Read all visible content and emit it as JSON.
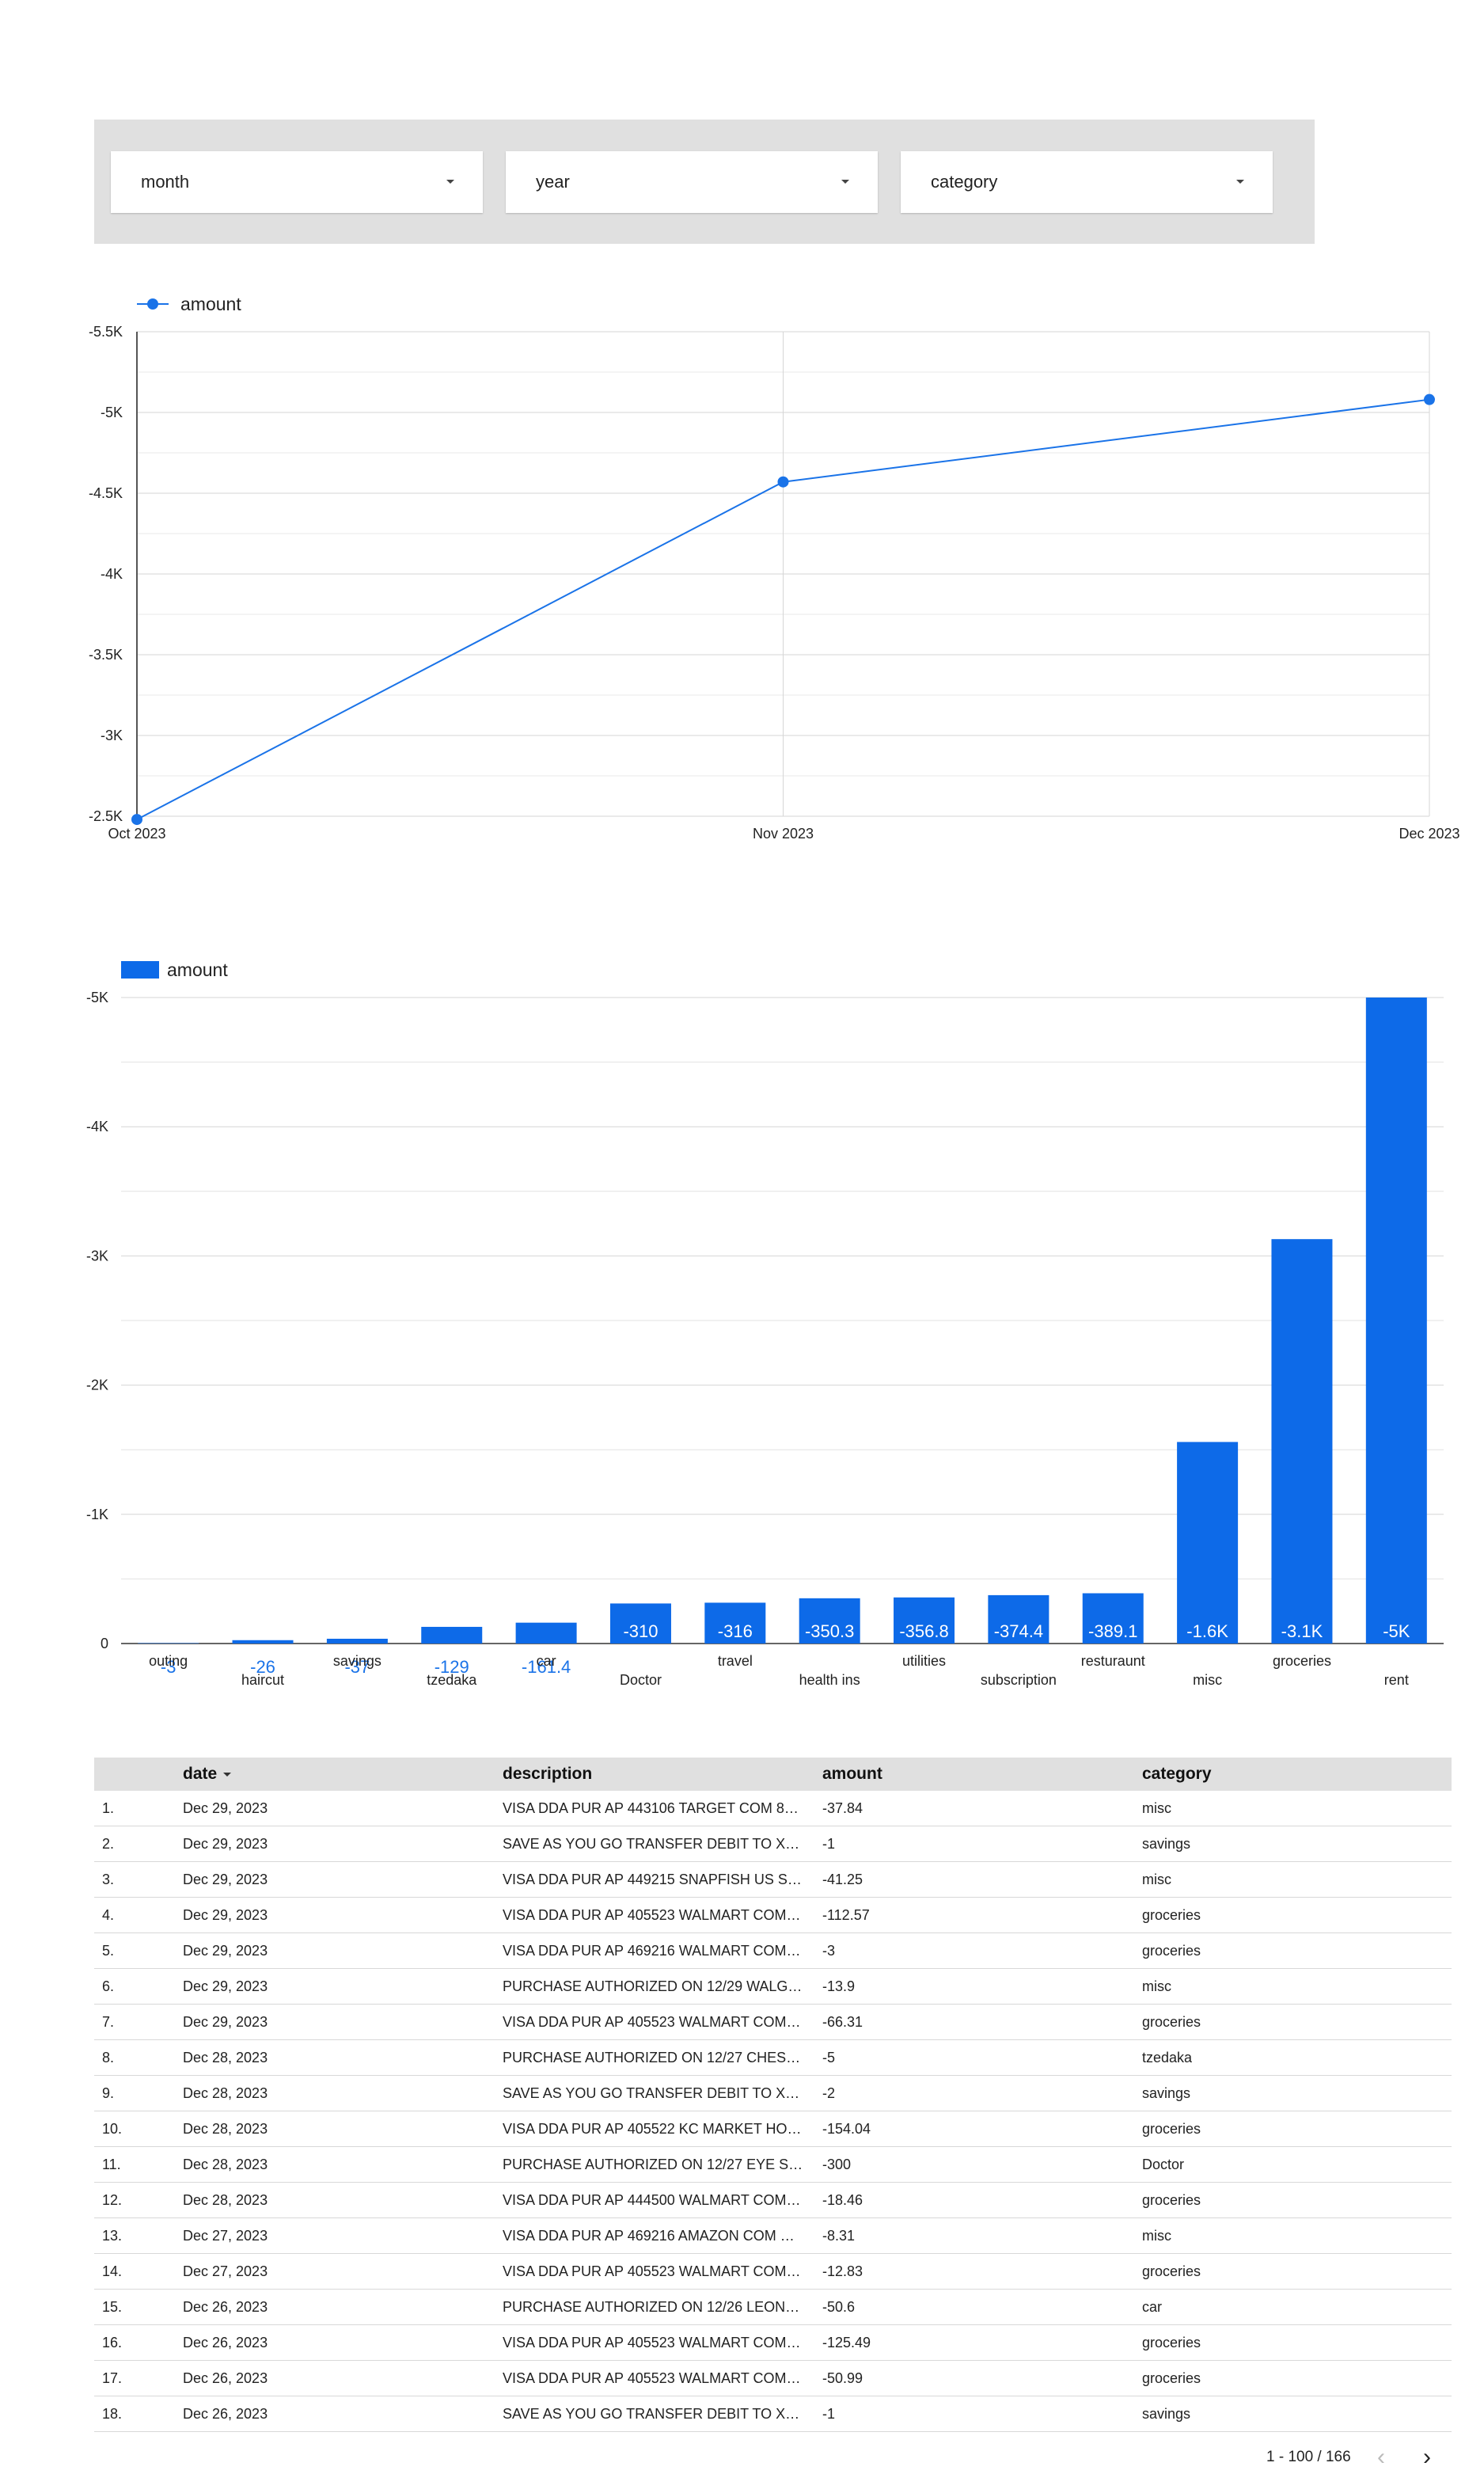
{
  "filters": {
    "month": {
      "label": "month"
    },
    "year": {
      "label": "year"
    },
    "category": {
      "label": "category"
    }
  },
  "chart_data": [
    {
      "type": "line",
      "legend": [
        "amount"
      ],
      "legend_position": "top-left",
      "x": [
        "Oct 2023",
        "Nov 2023",
        "Dec 2023"
      ],
      "series": [
        {
          "name": "amount",
          "values": [
            -2480,
            -4570,
            -5080
          ]
        }
      ],
      "ylim": [
        -2500,
        -5500
      ],
      "yticks": [
        -5500,
        -5000,
        -4500,
        -4000,
        -3500,
        -3000,
        -2500
      ],
      "ytick_labels": [
        "-5.5K",
        "-5K",
        "-4.5K",
        "-4K",
        "-3.5K",
        "-3K",
        "-2.5K"
      ],
      "grid": true,
      "color": "#1a73e8"
    },
    {
      "type": "bar",
      "legend": [
        "amount"
      ],
      "legend_position": "top-left",
      "categories": [
        "outing",
        "haircut",
        "savings",
        "tzedaka",
        "car",
        "Doctor",
        "travel",
        "health ins",
        "utilities",
        "subscription",
        "resturaunt",
        "misc",
        "groceries",
        "rent"
      ],
      "series": [
        {
          "name": "amount",
          "values": [
            -3,
            -26,
            -37,
            -129,
            -161.4,
            -310,
            -316,
            -350.3,
            -356.8,
            -374.4,
            -389.1,
            -1560,
            -3130,
            -5000
          ]
        }
      ],
      "data_labels": [
        "-3",
        "-26",
        "-37",
        "-129",
        "-161.4",
        "-310",
        "-316",
        "-350.3",
        "-356.8",
        "-374.4",
        "-389.1",
        "-1.6K",
        "-3.1K",
        "-5K"
      ],
      "ylim": [
        0,
        -5000
      ],
      "yticks": [
        0,
        -1000,
        -2000,
        -3000,
        -4000,
        -5000
      ],
      "ytick_labels": [
        "0",
        "-1K",
        "-2K",
        "-3K",
        "-4K",
        "-5K"
      ],
      "grid": true,
      "color": "#0d6ae8"
    }
  ],
  "table": {
    "columns": {
      "date": "date",
      "description": "description",
      "amount": "amount",
      "category": "category"
    },
    "rows": [
      {
        "idx": "1.",
        "date": "Dec 29, 2023",
        "description": "VISA DDA PUR AP 443106 TARGET COM 8…",
        "amount": "-37.84",
        "category": "misc"
      },
      {
        "idx": "2.",
        "date": "Dec 29, 2023",
        "description": "SAVE AS YOU GO TRANSFER DEBIT TO XX…",
        "amount": "-1",
        "category": "savings"
      },
      {
        "idx": "3.",
        "date": "Dec 29, 2023",
        "description": "VISA DDA PUR AP 449215 SNAPFISH US S…",
        "amount": "-41.25",
        "category": "misc"
      },
      {
        "idx": "4.",
        "date": "Dec 29, 2023",
        "description": "VISA DDA PUR AP 405523 WALMART COM…",
        "amount": "-112.57",
        "category": "groceries"
      },
      {
        "idx": "5.",
        "date": "Dec 29, 2023",
        "description": "VISA DDA PUR AP 469216 WALMART COM…",
        "amount": "-3",
        "category": "groceries"
      },
      {
        "idx": "6.",
        "date": "Dec 29, 2023",
        "description": "PURCHASE AUTHORIZED ON 12/29 WALG…",
        "amount": "-13.9",
        "category": "misc"
      },
      {
        "idx": "7.",
        "date": "Dec 29, 2023",
        "description": "VISA DDA PUR AP 405523 WALMART COM…",
        "amount": "-66.31",
        "category": "groceries"
      },
      {
        "idx": "8.",
        "date": "Dec 28, 2023",
        "description": "PURCHASE AUTHORIZED ON 12/27 CHES…",
        "amount": "-5",
        "category": "tzedaka"
      },
      {
        "idx": "9.",
        "date": "Dec 28, 2023",
        "description": "SAVE AS YOU GO TRANSFER DEBIT TO XX…",
        "amount": "-2",
        "category": "savings"
      },
      {
        "idx": "10.",
        "date": "Dec 28, 2023",
        "description": "VISA DDA PUR AP 405522 KC MARKET HO…",
        "amount": "-154.04",
        "category": "groceries"
      },
      {
        "idx": "11.",
        "date": "Dec 28, 2023",
        "description": "PURCHASE AUTHORIZED ON 12/27 EYE S…",
        "amount": "-300",
        "category": "Doctor"
      },
      {
        "idx": "12.",
        "date": "Dec 28, 2023",
        "description": "VISA DDA PUR AP 444500 WALMART COM…",
        "amount": "-18.46",
        "category": "groceries"
      },
      {
        "idx": "13.",
        "date": "Dec 27, 2023",
        "description": "VISA DDA PUR AP 469216 AMAZON COM …",
        "amount": "-8.31",
        "category": "misc"
      },
      {
        "idx": "14.",
        "date": "Dec 27, 2023",
        "description": "VISA DDA PUR AP 405523 WALMART COM…",
        "amount": "-12.83",
        "category": "groceries"
      },
      {
        "idx": "15.",
        "date": "Dec 26, 2023",
        "description": "PURCHASE AUTHORIZED ON 12/26 LEON …",
        "amount": "-50.6",
        "category": "car"
      },
      {
        "idx": "16.",
        "date": "Dec 26, 2023",
        "description": "VISA DDA PUR AP 405523 WALMART COM…",
        "amount": "-125.49",
        "category": "groceries"
      },
      {
        "idx": "17.",
        "date": "Dec 26, 2023",
        "description": "VISA DDA PUR AP 405523 WALMART COM…",
        "amount": "-50.99",
        "category": "groceries"
      },
      {
        "idx": "18.",
        "date": "Dec 26, 2023",
        "description": "SAVE AS YOU GO TRANSFER DEBIT TO XX…",
        "amount": "-1",
        "category": "savings"
      }
    ],
    "pagination": {
      "label": "1 - 100 / 166",
      "prev_icon": "chevron-left-icon",
      "next_icon": "chevron-right-icon"
    }
  }
}
